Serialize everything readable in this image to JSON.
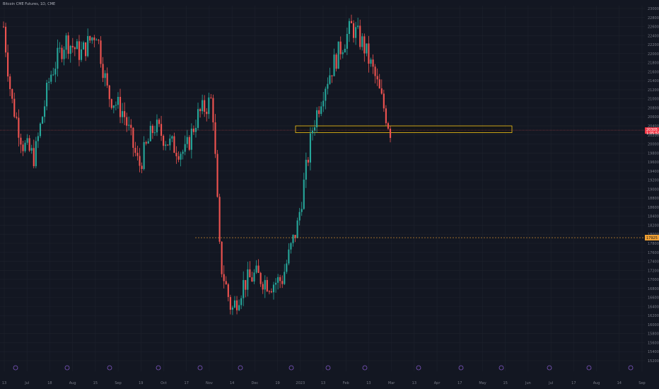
{
  "header": {
    "title": "Bitcoin CME Futures, 1D, CME"
  },
  "chart_data": {
    "type": "candlestick",
    "title": "Bitcoin CME Futures, 1D, CME",
    "y_ticks": [
      "23000",
      "22800",
      "22600",
      "22400",
      "22200",
      "22000",
      "21800",
      "21600",
      "21400",
      "21200",
      "21000",
      "20800",
      "20600",
      "20400",
      "20200",
      "20000",
      "19800",
      "19600",
      "19400",
      "19200",
      "19000",
      "18800",
      "18600",
      "18400",
      "18200",
      "18000",
      "17800",
      "17600",
      "17400",
      "17200",
      "17000",
      "16800",
      "16600",
      "16400",
      "16200",
      "16000",
      "15800",
      "15600",
      "15400",
      "15200"
    ],
    "x_ticks": [
      "13",
      "Jul",
      "18",
      "Aug",
      "15",
      "Sep",
      "19",
      "Oct",
      "17",
      "Nov",
      "14",
      "Dec",
      "19",
      "2023",
      "13",
      "Feb",
      "13",
      "Mar",
      "13",
      "Apr",
      "17",
      "May",
      "15",
      "Jun",
      "Jul",
      "17",
      "Aug",
      "14",
      "Sep"
    ],
    "current_price": "20305",
    "current_price_sub": "1:05:53",
    "level_price": "17925",
    "zone": {
      "top_price": 20400,
      "bottom_price": 20250,
      "label": ""
    },
    "colors": {
      "up": "#26a69a",
      "down": "#ef5350",
      "zone_border": "#f5c518",
      "level": "#f0a033",
      "price_tag": "#f23645"
    },
    "candles_count": 180
  }
}
